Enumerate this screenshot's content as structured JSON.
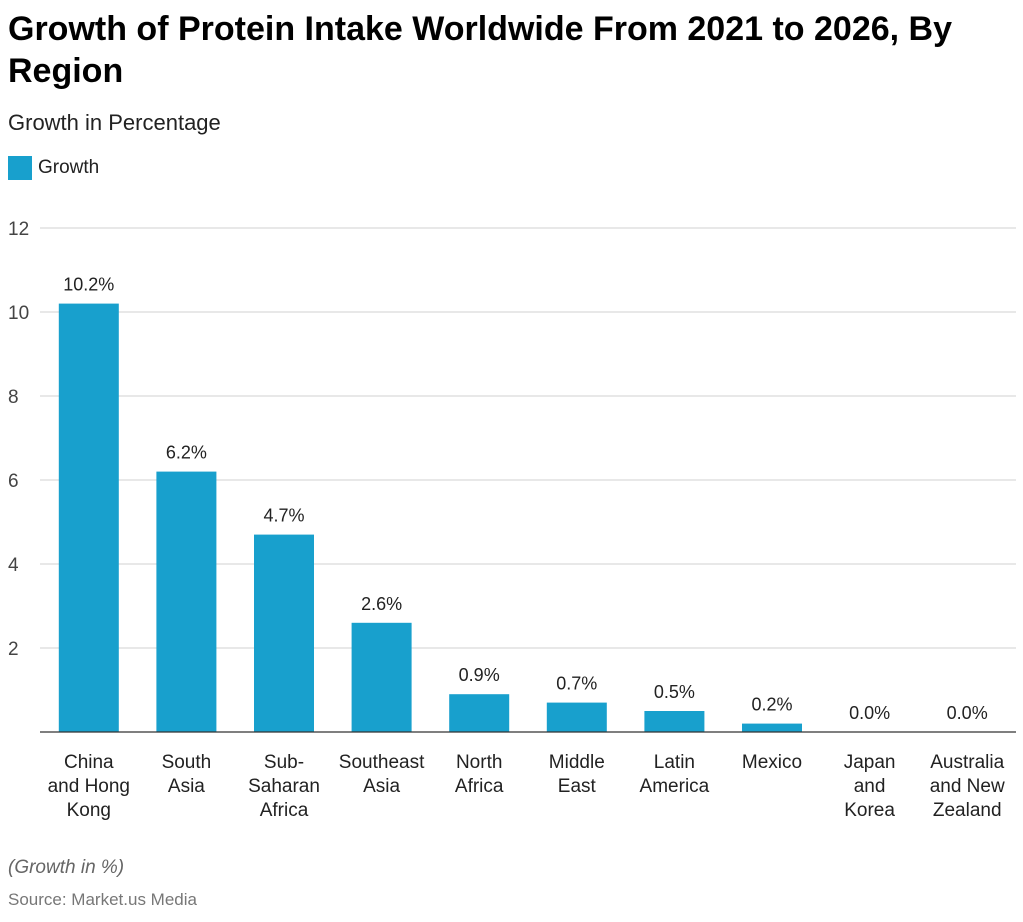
{
  "chart_data": {
    "type": "bar",
    "title": "Growth of Protein Intake Worldwide From 2021 to 2026, By Region",
    "subtitle": "Growth in Percentage",
    "categories": [
      "China and Hong Kong",
      "South Asia",
      "Sub-Saharan Africa",
      "Southeast Asia",
      "North Africa",
      "Middle East",
      "Latin America",
      "Mexico",
      "Japan and Korea",
      "Australia and New Zealand"
    ],
    "category_lines": [
      [
        "China",
        "and Hong",
        "Kong"
      ],
      [
        "South",
        "Asia"
      ],
      [
        "Sub-",
        "Saharan",
        "Africa"
      ],
      [
        "Southeast",
        "Asia"
      ],
      [
        "North",
        "Africa"
      ],
      [
        "Middle",
        "East"
      ],
      [
        "Latin",
        "America"
      ],
      [
        "Mexico"
      ],
      [
        "Japan",
        "and",
        "Korea"
      ],
      [
        "Australia",
        "and New",
        "Zealand"
      ]
    ],
    "series": [
      {
        "name": "Growth",
        "values": [
          10.2,
          6.2,
          4.7,
          2.6,
          0.9,
          0.7,
          0.5,
          0.2,
          0.0,
          0.0
        ]
      }
    ],
    "data_labels": [
      "10.2%",
      "6.2%",
      "4.7%",
      "2.6%",
      "0.9%",
      "0.7%",
      "0.5%",
      "0.2%",
      "0.0%",
      "0.0%"
    ],
    "ylim": [
      0,
      12
    ],
    "yticks": [
      2,
      4,
      6,
      8,
      10,
      12
    ],
    "grid": true,
    "legend": "top-left",
    "bar_color": "#18A0CD",
    "xlabel": "",
    "ylabel": ""
  },
  "note": "(Growth in %)",
  "source": "Source: Market.us Media"
}
